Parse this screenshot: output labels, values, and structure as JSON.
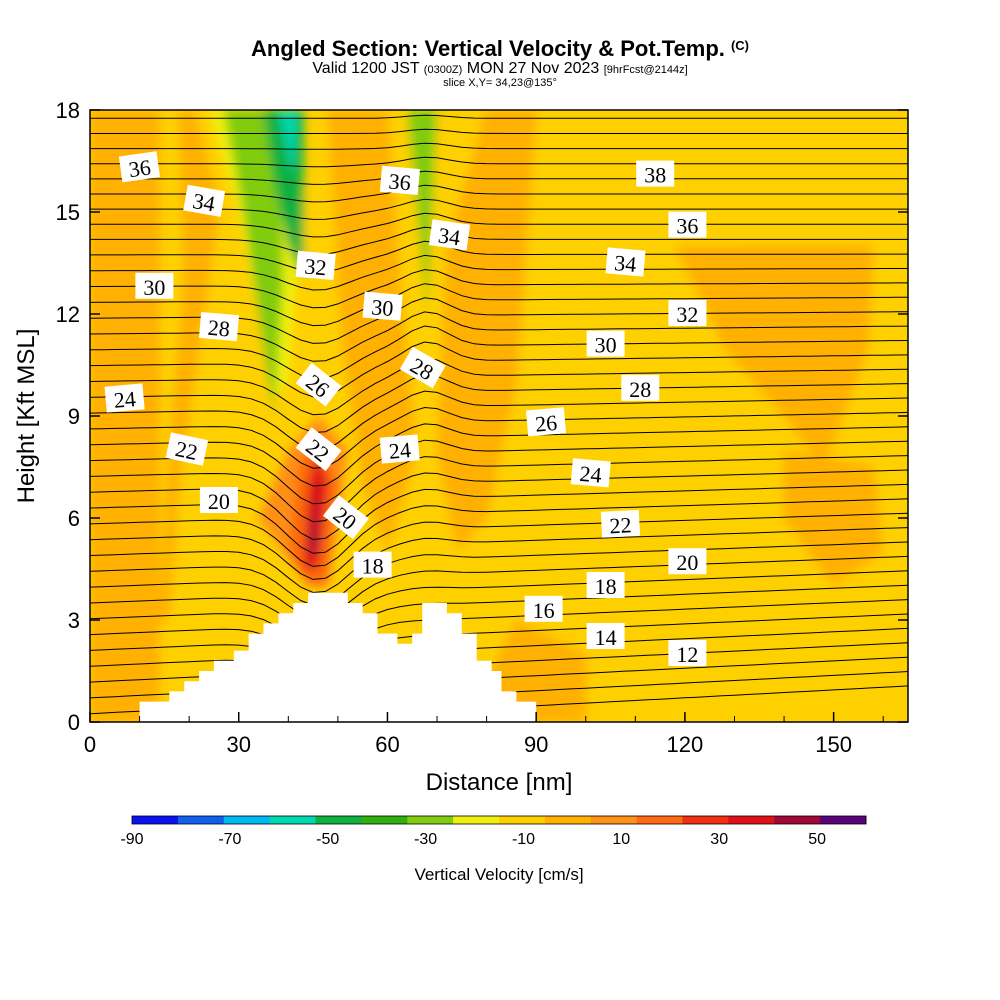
{
  "header": {
    "title": "Angled Section: Vertical Velocity & Pot.Temp.",
    "title_suffix": "(C)",
    "valid_prefix": "Valid 1200 JST",
    "valid_utc": "(0300Z)",
    "valid_date": "MON 27 Nov 2023",
    "forecast": "[9hrFcst@2144z]",
    "slice": "slice X,Y= 34,23@135°"
  },
  "colors": {
    "terrain": "#ffffff",
    "contour": "#000000",
    "scale": [
      "#0a10f0",
      "#1060f0",
      "#00b8f4",
      "#00d8b0",
      "#10b040",
      "#30b010",
      "#80cc10",
      "#f0f010",
      "#ffd000",
      "#ffb000",
      "#ff9018",
      "#ff6a10",
      "#f03010",
      "#e01018",
      "#a00838",
      "#58047a"
    ]
  },
  "chart_data": {
    "type": "heatmap",
    "title": "Angled Section: Vertical Velocity & Pot.Temp. (C)",
    "xlabel": "Distance [nm]",
    "ylabel": "Height [Kft MSL]",
    "xlim": [
      0,
      165
    ],
    "ylim": [
      0,
      18
    ],
    "x_ticks": [
      "0",
      "30",
      "60",
      "90",
      "120",
      "150"
    ],
    "x_tick_values": [
      0,
      30,
      60,
      90,
      120,
      150
    ],
    "y_ticks": [
      "0",
      "3",
      "6",
      "9",
      "12",
      "15",
      "18"
    ],
    "y_tick_values": [
      0,
      3,
      6,
      9,
      12,
      15,
      18
    ],
    "fill_variable": "Vertical Velocity [cm/s]",
    "contour_variable": "Potential Temperature (C)",
    "contour_levels": [
      12,
      14,
      16,
      18,
      20,
      22,
      24,
      26,
      28,
      30,
      32,
      34,
      36,
      38
    ],
    "colorbar": {
      "title": "Vertical Velocity [cm/s]",
      "range": [
        -90,
        60
      ],
      "step": 10,
      "labels": [
        "-90",
        "-70",
        "-50",
        "-30",
        "-10",
        "10",
        "30",
        "50"
      ],
      "label_values": [
        -90,
        -70,
        -50,
        -30,
        -10,
        10,
        30,
        50
      ]
    },
    "isotherm_labels": [
      {
        "text": "36",
        "x": 10,
        "y": 16.3,
        "angle": -8
      },
      {
        "text": "34",
        "x": 23,
        "y": 15.3,
        "angle": 10
      },
      {
        "text": "30",
        "x": 13,
        "y": 12.8,
        "angle": 0
      },
      {
        "text": "28",
        "x": 26,
        "y": 11.6,
        "angle": 5
      },
      {
        "text": "24",
        "x": 7,
        "y": 9.5,
        "angle": -5
      },
      {
        "text": "22",
        "x": 19.5,
        "y": 8.0,
        "angle": 12
      },
      {
        "text": "20",
        "x": 26,
        "y": 6.5,
        "angle": 0
      },
      {
        "text": "36",
        "x": 62.5,
        "y": 15.9,
        "angle": 5
      },
      {
        "text": "32",
        "x": 45.5,
        "y": 13.4,
        "angle": 5
      },
      {
        "text": "34",
        "x": 72.5,
        "y": 14.3,
        "angle": 8
      },
      {
        "text": "30",
        "x": 59,
        "y": 12.2,
        "angle": 5
      },
      {
        "text": "28",
        "x": 67,
        "y": 10.4,
        "angle": 30
      },
      {
        "text": "26",
        "x": 46,
        "y": 9.9,
        "angle": 38
      },
      {
        "text": "22",
        "x": 46,
        "y": 8.0,
        "angle": 38
      },
      {
        "text": "20",
        "x": 51.5,
        "y": 6.0,
        "angle": 38
      },
      {
        "text": "24",
        "x": 62.5,
        "y": 8.0,
        "angle": -5
      },
      {
        "text": "18",
        "x": 57,
        "y": 4.6,
        "angle": 0
      },
      {
        "text": "38",
        "x": 114,
        "y": 16.1,
        "angle": 0
      },
      {
        "text": "36",
        "x": 120.5,
        "y": 14.6,
        "angle": 0
      },
      {
        "text": "34",
        "x": 108,
        "y": 13.5,
        "angle": 5
      },
      {
        "text": "32",
        "x": 120.5,
        "y": 12.0,
        "angle": 0
      },
      {
        "text": "30",
        "x": 104,
        "y": 11.1,
        "angle": 0
      },
      {
        "text": "28",
        "x": 111,
        "y": 9.8,
        "angle": 0
      },
      {
        "text": "26",
        "x": 92,
        "y": 8.8,
        "angle": -5
      },
      {
        "text": "24",
        "x": 101,
        "y": 7.3,
        "angle": 5
      },
      {
        "text": "22",
        "x": 107,
        "y": 5.8,
        "angle": -3
      },
      {
        "text": "20",
        "x": 120.5,
        "y": 4.7,
        "angle": 0
      },
      {
        "text": "18",
        "x": 104,
        "y": 4.0,
        "angle": 0
      },
      {
        "text": "16",
        "x": 91.5,
        "y": 3.3,
        "angle": 0
      },
      {
        "text": "14",
        "x": 104,
        "y": 2.5,
        "angle": 0
      },
      {
        "text": "12",
        "x": 120.5,
        "y": 2.0,
        "angle": 0
      }
    ],
    "terrain_profile": [
      [
        10,
        0.6
      ],
      [
        16,
        0.6
      ],
      [
        16,
        0.9
      ],
      [
        19,
        0.9
      ],
      [
        19,
        1.2
      ],
      [
        22,
        1.2
      ],
      [
        22,
        1.5
      ],
      [
        25,
        1.5
      ],
      [
        25,
        1.8
      ],
      [
        29,
        1.8
      ],
      [
        29,
        2.1
      ],
      [
        32,
        2.1
      ],
      [
        32,
        2.6
      ],
      [
        35,
        2.6
      ],
      [
        35,
        2.9
      ],
      [
        38,
        2.9
      ],
      [
        38,
        3.2
      ],
      [
        41,
        3.2
      ],
      [
        41,
        3.5
      ],
      [
        44,
        3.5
      ],
      [
        44,
        3.8
      ],
      [
        52,
        3.8
      ],
      [
        52,
        3.5
      ],
      [
        55,
        3.5
      ],
      [
        55,
        3.2
      ],
      [
        58,
        3.2
      ],
      [
        58,
        2.6
      ],
      [
        62,
        2.6
      ],
      [
        62,
        2.3
      ],
      [
        65,
        2.3
      ],
      [
        65,
        2.6
      ],
      [
        67,
        2.6
      ],
      [
        67,
        3.5
      ],
      [
        72,
        3.5
      ],
      [
        72,
        3.2
      ],
      [
        75,
        3.2
      ],
      [
        75,
        2.6
      ],
      [
        78,
        2.6
      ],
      [
        78,
        1.8
      ],
      [
        81,
        1.8
      ],
      [
        81,
        1.5
      ],
      [
        83,
        1.5
      ],
      [
        83,
        0.9
      ],
      [
        86,
        0.9
      ],
      [
        86,
        0.6
      ],
      [
        90,
        0.6
      ],
      [
        90,
        0
      ]
    ]
  }
}
